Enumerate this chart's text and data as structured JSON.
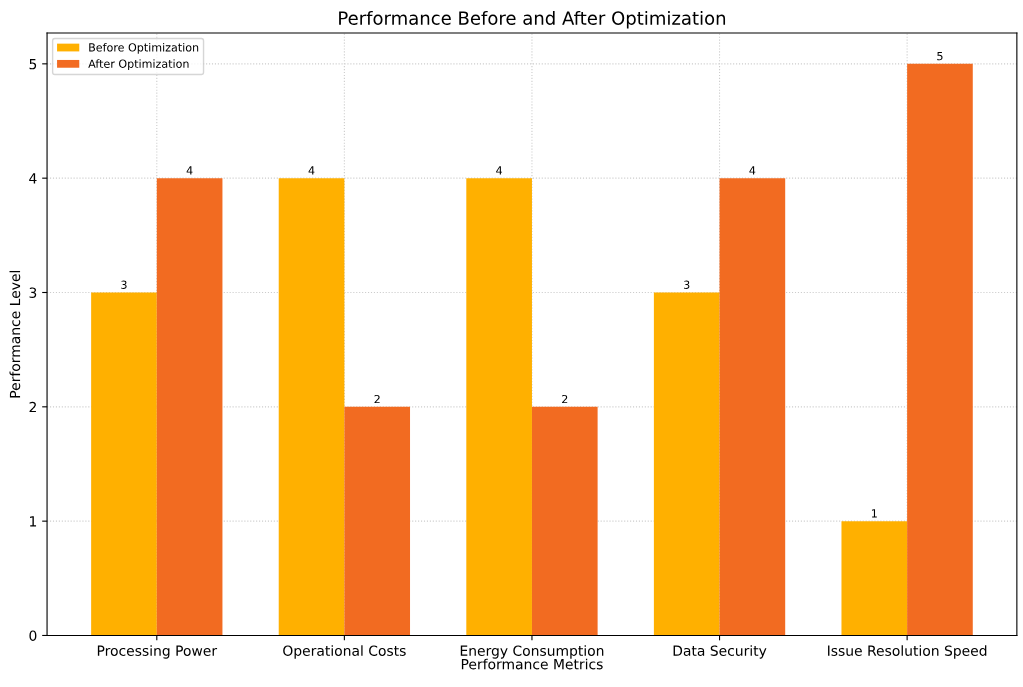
{
  "chart_data": {
    "type": "bar",
    "title": "Performance Before and After Optimization",
    "xlabel": "Performance Metrics",
    "ylabel": "Performance Level",
    "categories": [
      "Processing Power",
      "Operational Costs",
      "Energy Consumption",
      "Data Security",
      "Issue Resolution Speed"
    ],
    "series": [
      {
        "name": "Before Optimization",
        "color": "#ffb000",
        "values": [
          3,
          4,
          4,
          3,
          1
        ]
      },
      {
        "name": "After Optimization",
        "color": "#f26b21",
        "values": [
          4,
          2,
          2,
          4,
          5
        ]
      }
    ],
    "ylim": [
      0,
      5.27
    ],
    "yticks": [
      0,
      1,
      2,
      3,
      4,
      5
    ],
    "grid": true,
    "legend": "top left",
    "data_labels": true
  }
}
